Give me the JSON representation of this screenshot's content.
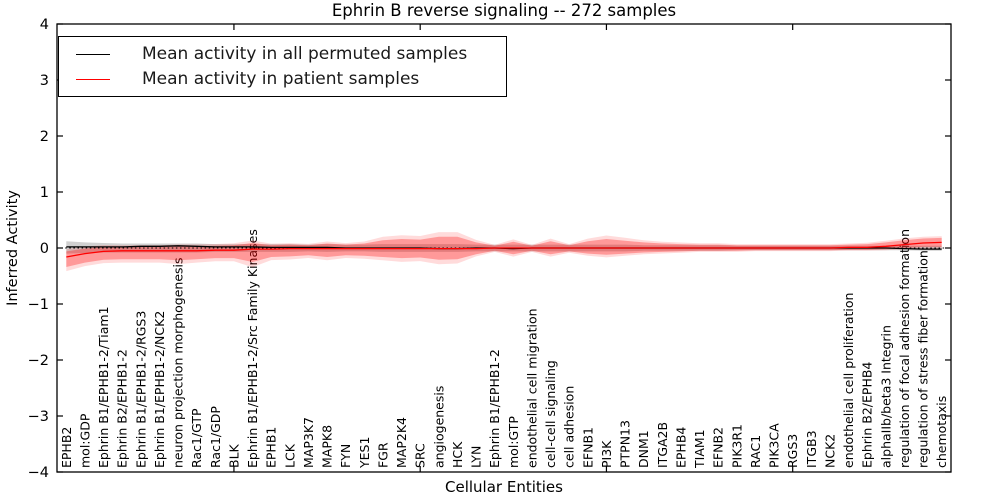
{
  "figure": {
    "title": "Ephrin B reverse signaling -- 272 samples",
    "xlabel": "Cellular Entities",
    "ylabel": "Inferred Activity"
  },
  "legend": {
    "items": [
      {
        "label": "Mean activity in all permuted samples",
        "color": "#000000"
      },
      {
        "label": "Mean activity in patient samples",
        "color": "#ff0000"
      }
    ],
    "position": "upper left",
    "border_color": "#000000"
  },
  "chart_data": {
    "type": "line",
    "title": "Ephrin B reverse signaling -- 272 samples",
    "xlabel": "Cellular Entities",
    "ylabel": "Inferred Activity",
    "ylim": [
      -4,
      4
    ],
    "y_tick_values": [
      -4,
      -3,
      -2,
      -1,
      0,
      1,
      2,
      3,
      4
    ],
    "y_tick_labels": [
      "−4",
      "−3",
      "−2",
      "−1",
      "0",
      "1",
      "2",
      "3",
      "4"
    ],
    "x_tick_positions": [
      10,
      20,
      30,
      40
    ],
    "grid": false,
    "zero_line": {
      "value": 0,
      "style": "dotted",
      "color": "#000000"
    },
    "categories": [
      "EPHB2",
      "mol:GDP",
      "Ephrin B1/EPHB1-2/Tiam1",
      "Ephrin B2/EPHB1-2",
      "Ephrin B1/EPHB1-2/RGS3",
      "Ephrin B1/EPHB1-2/NCK2",
      "neuron projection morphogenesis",
      "Rac1/GTP",
      "Rac1/GDP",
      "BLK",
      "Ephrin B1/EPHB1-2/Src Family Kinases",
      "EPHB1",
      "LCK",
      "MAP3K7",
      "MAPK8",
      "FYN",
      "YES1",
      "FGR",
      "MAP2K4",
      "SRC",
      "angiogenesis",
      "HCK",
      "LYN",
      "Ephrin B1/EPHB1-2",
      "mol:GTP",
      "endothelial cell migration",
      "cell-cell signaling",
      "cell adhesion",
      "EFNB1",
      "PI3K",
      "PTPN13",
      "DNM1",
      "ITGA2B",
      "EPHB4",
      "TIAM1",
      "EFNB2",
      "PIK3R1",
      "RAC1",
      "PIK3CA",
      "RGS3",
      "ITGB3",
      "NCK2",
      "endothelial cell proliferation",
      "Ephrin B2/EPHB4",
      "alphaIIb/beta3 Integrin",
      "regulation of focal adhesion formation",
      "regulation of stress fiber formation",
      "chemotaxis"
    ],
    "series": [
      {
        "name": "Mean activity in all permuted samples",
        "color": "#000000",
        "band_color": "#787878",
        "band_opacity": 0.35,
        "values": [
          0.02,
          0.02,
          0.02,
          0.02,
          0.03,
          0.03,
          0.04,
          0.03,
          0.02,
          0.02,
          0.02,
          0.01,
          0.01,
          0.01,
          0.01,
          0.0,
          0.0,
          0.0,
          0.0,
          0.0,
          -0.01,
          -0.01,
          0.0,
          0.0,
          -0.01,
          0.0,
          0.0,
          0.0,
          0.0,
          0.0,
          0.0,
          0.0,
          0.0,
          0.0,
          0.0,
          0.0,
          0.0,
          0.0,
          0.0,
          0.0,
          0.0,
          0.0,
          0.0,
          0.0,
          0.0,
          -0.01,
          -0.02,
          -0.02
        ],
        "band_upper": [
          0.12,
          0.1,
          0.09,
          0.08,
          0.08,
          0.08,
          0.08,
          0.08,
          0.07,
          0.07,
          0.07,
          0.07,
          0.07,
          0.06,
          0.07,
          0.06,
          0.06,
          0.07,
          0.07,
          0.07,
          0.07,
          0.07,
          0.06,
          0.06,
          0.06,
          0.06,
          0.06,
          0.06,
          0.06,
          0.06,
          0.06,
          0.05,
          0.05,
          0.05,
          0.05,
          0.05,
          0.04,
          0.04,
          0.04,
          0.04,
          0.04,
          0.04,
          0.04,
          0.04,
          0.04,
          0.04,
          0.04,
          0.04
        ],
        "band_lower": [
          -0.1,
          -0.09,
          -0.08,
          -0.08,
          -0.08,
          -0.08,
          -0.08,
          -0.08,
          -0.07,
          -0.07,
          -0.07,
          -0.07,
          -0.07,
          -0.06,
          -0.07,
          -0.06,
          -0.06,
          -0.07,
          -0.07,
          -0.07,
          -0.07,
          -0.07,
          -0.06,
          -0.06,
          -0.06,
          -0.06,
          -0.06,
          -0.06,
          -0.06,
          -0.06,
          -0.06,
          -0.05,
          -0.05,
          -0.05,
          -0.05,
          -0.05,
          -0.04,
          -0.04,
          -0.04,
          -0.04,
          -0.04,
          -0.04,
          -0.04,
          -0.04,
          -0.04,
          -0.04,
          -0.05,
          -0.05
        ]
      },
      {
        "name": "Mean activity in patient samples",
        "color": "#ff0000",
        "band_color": "#ff0000",
        "band_opacity": 0.3,
        "values": [
          -0.16,
          -0.1,
          -0.06,
          -0.05,
          -0.05,
          -0.05,
          -0.05,
          -0.05,
          -0.04,
          -0.04,
          -0.02,
          -0.02,
          -0.01,
          -0.01,
          -0.01,
          -0.01,
          -0.01,
          -0.01,
          -0.01,
          -0.01,
          -0.01,
          -0.01,
          -0.01,
          0.0,
          0.0,
          0.0,
          0.0,
          0.0,
          0.0,
          0.0,
          0.0,
          0.0,
          0.0,
          0.0,
          0.0,
          0.0,
          0.0,
          0.0,
          0.0,
          0.0,
          0.0,
          0.0,
          0.01,
          0.01,
          0.03,
          0.06,
          0.09,
          0.1
        ],
        "band_upper": [
          -0.06,
          -0.01,
          0.02,
          0.02,
          0.02,
          0.02,
          0.03,
          0.03,
          0.04,
          0.05,
          0.09,
          0.05,
          0.06,
          0.05,
          0.08,
          0.06,
          0.08,
          0.14,
          0.16,
          0.15,
          0.2,
          0.2,
          0.1,
          0.04,
          0.11,
          0.04,
          0.12,
          0.05,
          0.12,
          0.16,
          0.13,
          0.1,
          0.08,
          0.07,
          0.06,
          0.06,
          0.05,
          0.05,
          0.05,
          0.05,
          0.05,
          0.05,
          0.06,
          0.07,
          0.1,
          0.14,
          0.17,
          0.18
        ],
        "band_lower": [
          -0.34,
          -0.26,
          -0.21,
          -0.2,
          -0.2,
          -0.2,
          -0.22,
          -0.2,
          -0.18,
          -0.18,
          -0.25,
          -0.16,
          -0.15,
          -0.13,
          -0.16,
          -0.13,
          -0.14,
          -0.16,
          -0.18,
          -0.17,
          -0.21,
          -0.2,
          -0.11,
          -0.05,
          -0.11,
          -0.05,
          -0.11,
          -0.06,
          -0.1,
          -0.12,
          -0.1,
          -0.08,
          -0.07,
          -0.06,
          -0.05,
          -0.05,
          -0.05,
          -0.04,
          -0.04,
          -0.04,
          -0.04,
          -0.04,
          -0.03,
          -0.03,
          -0.02,
          0.0,
          0.02,
          0.02
        ]
      }
    ]
  },
  "colors": {
    "background": "#ffffff",
    "axis": "#000000",
    "text": "#000000",
    "patient_line": "#ff0000",
    "permuted_line": "#000000"
  }
}
